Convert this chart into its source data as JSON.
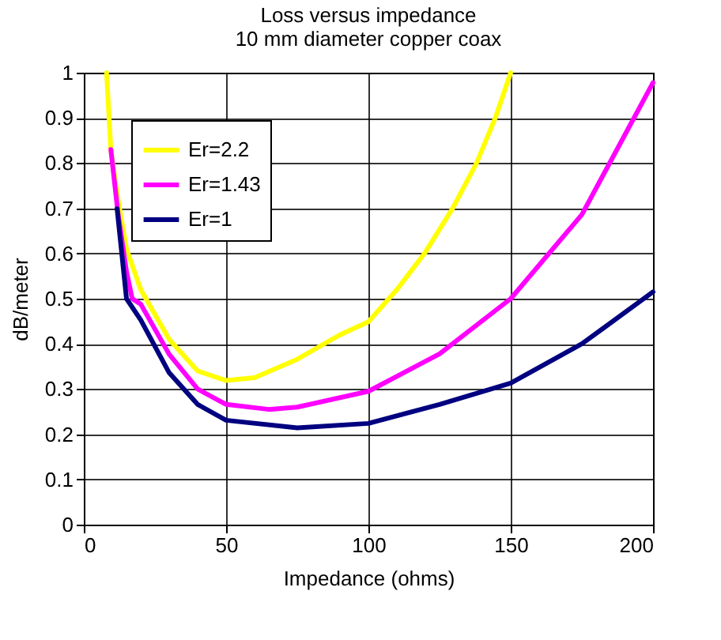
{
  "chart_data": {
    "type": "line",
    "title": "Loss versus impedance",
    "subtitle": "10 mm diameter copper coax",
    "xlabel": "Impedance (ohms)",
    "ylabel": "dB/meter",
    "xlim": [
      0,
      200
    ],
    "xticks": [
      0,
      50,
      100,
      150,
      200
    ],
    "ylim": [
      0,
      1
    ],
    "yticks": [
      0,
      0.1,
      0.2,
      0.3,
      0.4,
      0.5,
      0.6,
      0.7,
      0.8,
      0.9,
      1
    ],
    "grid": true,
    "legend": "top left",
    "marker": "none",
    "line_style": "solid",
    "series": [
      {
        "name": "Er=2.2",
        "color": "#ffff00",
        "x": [
          8,
          9.5,
          12,
          15,
          20,
          30,
          40,
          50,
          60,
          75,
          90,
          100,
          110,
          119.7,
          129.6,
          138,
          144.6,
          150
        ],
        "values": [
          1,
          0.83,
          0.72,
          0.61,
          0.52,
          0.41,
          0.34,
          0.319,
          0.325,
          0.366,
          0.42,
          0.449,
          0.52,
          0.6,
          0.7,
          0.8,
          0.9,
          1
        ]
      },
      {
        "name": "Er=1.43",
        "color": "#ff00ff",
        "x": [
          9.5,
          12,
          15,
          17,
          20,
          30,
          40,
          50,
          65,
          75,
          100,
          125,
          150,
          175,
          200
        ],
        "values": [
          0.83,
          0.69,
          0.56,
          0.5,
          0.488,
          0.377,
          0.3,
          0.266,
          0.255,
          0.26,
          0.295,
          0.378,
          0.5,
          0.686,
          0.978
        ]
      },
      {
        "name": "Er=1",
        "color": "#000080",
        "x": [
          11.7,
          15,
          20,
          30,
          40,
          50,
          75,
          100,
          125,
          150,
          175,
          200
        ],
        "values": [
          0.699,
          0.5,
          0.453,
          0.336,
          0.266,
          0.231,
          0.214,
          0.224,
          0.266,
          0.313,
          0.4,
          0.515
        ]
      }
    ]
  }
}
